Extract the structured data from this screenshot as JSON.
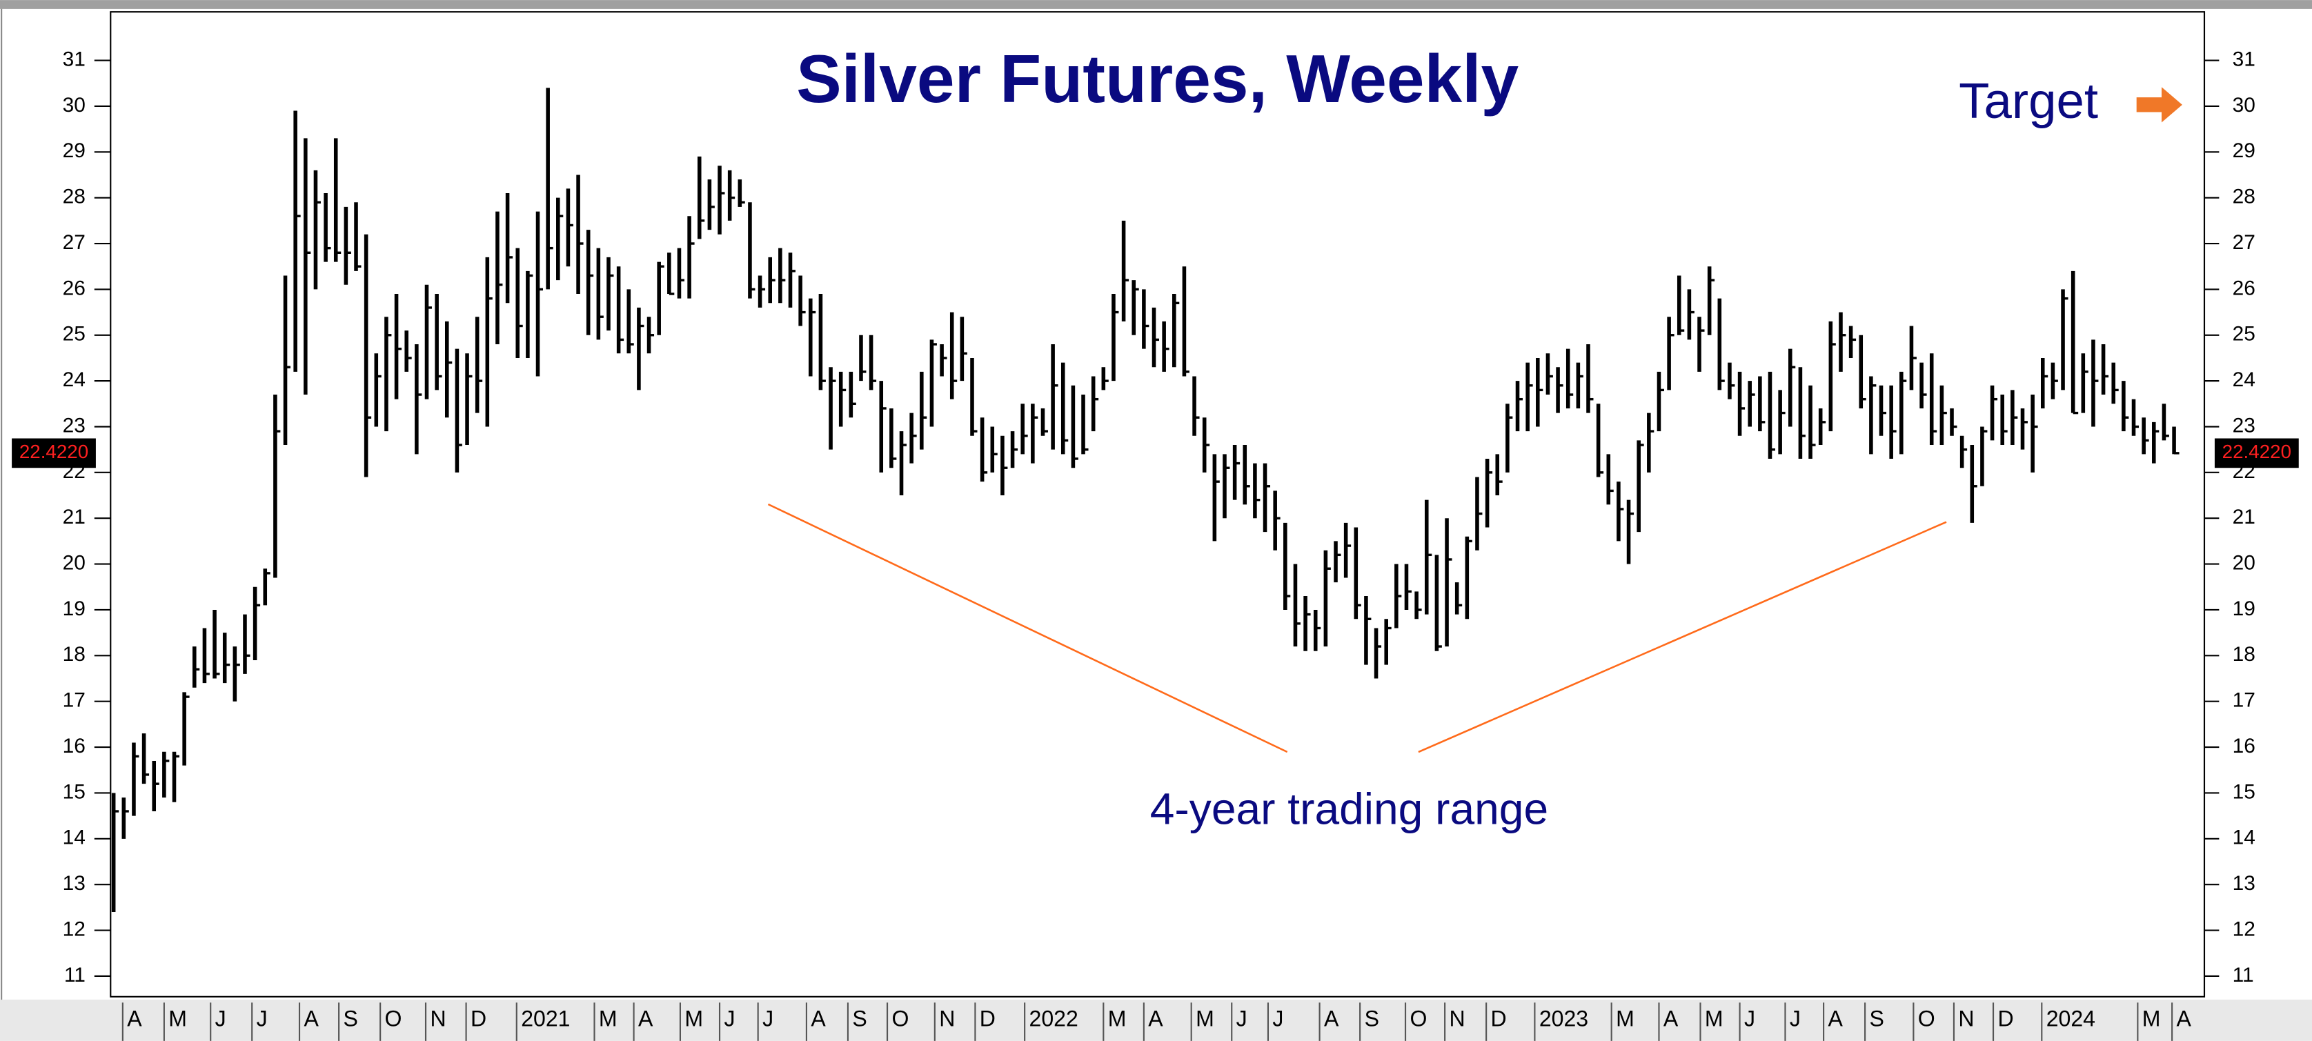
{
  "chart_data": {
    "type": "ohlc",
    "title": "Silver Futures, Weekly",
    "target_label": "Target",
    "annotation": "4-year trading range",
    "last_label": "22.4220",
    "color": "#000000",
    "ylim": [
      10.55,
      32.06
    ],
    "yticks": [
      11,
      12,
      13,
      14,
      15,
      16,
      17,
      18,
      19,
      20,
      21,
      22,
      23,
      24,
      25,
      26,
      27,
      28,
      29,
      30,
      31
    ],
    "xlim": [
      -0.3,
      207
    ],
    "xticks": [
      {
        "value": 0.9,
        "label": "A"
      },
      {
        "value": 5.0,
        "label": "M"
      },
      {
        "value": 9.6,
        "label": "J"
      },
      {
        "value": 13.7,
        "label": "J"
      },
      {
        "value": 18.4,
        "label": "A"
      },
      {
        "value": 22.3,
        "label": "S"
      },
      {
        "value": 26.4,
        "label": "O"
      },
      {
        "value": 30.9,
        "label": "N"
      },
      {
        "value": 34.9,
        "label": "D"
      },
      {
        "value": 39.9,
        "label": "2021"
      },
      {
        "value": 47.6,
        "label": "M"
      },
      {
        "value": 51.5,
        "label": "A"
      },
      {
        "value": 56.1,
        "label": "M"
      },
      {
        "value": 60.0,
        "label": "J"
      },
      {
        "value": 63.8,
        "label": "J"
      },
      {
        "value": 68.6,
        "label": "A"
      },
      {
        "value": 72.7,
        "label": "S"
      },
      {
        "value": 76.6,
        "label": "O"
      },
      {
        "value": 81.3,
        "label": "N"
      },
      {
        "value": 85.3,
        "label": "D"
      },
      {
        "value": 90.2,
        "label": "2022"
      },
      {
        "value": 98.0,
        "label": "M"
      },
      {
        "value": 102.0,
        "label": "A"
      },
      {
        "value": 106.7,
        "label": "M"
      },
      {
        "value": 110.7,
        "label": "J"
      },
      {
        "value": 114.3,
        "label": "J"
      },
      {
        "value": 119.4,
        "label": "A"
      },
      {
        "value": 123.4,
        "label": "S"
      },
      {
        "value": 127.9,
        "label": "O"
      },
      {
        "value": 131.8,
        "label": "N"
      },
      {
        "value": 135.9,
        "label": "D"
      },
      {
        "value": 140.7,
        "label": "2023"
      },
      {
        "value": 148.3,
        "label": "M"
      },
      {
        "value": 153.0,
        "label": "A"
      },
      {
        "value": 157.1,
        "label": "M"
      },
      {
        "value": 161.0,
        "label": "J"
      },
      {
        "value": 165.5,
        "label": "J"
      },
      {
        "value": 169.3,
        "label": "A"
      },
      {
        "value": 173.4,
        "label": "S"
      },
      {
        "value": 178.2,
        "label": "O"
      },
      {
        "value": 182.2,
        "label": "N"
      },
      {
        "value": 186.1,
        "label": "D"
      },
      {
        "value": 190.9,
        "label": "2024"
      },
      {
        "value": 200.4,
        "label": "M"
      },
      {
        "value": 203.8,
        "label": "A"
      }
    ],
    "low": [
      12.4,
      14.0,
      14.5,
      15.2,
      14.6,
      14.9,
      14.8,
      15.6,
      17.3,
      17.4,
      17.5,
      17.4,
      17.0,
      17.6,
      17.9,
      19.1,
      19.7,
      22.6,
      24.2,
      23.7,
      26.0,
      26.6,
      26.6,
      26.1,
      26.4,
      21.9,
      23.0,
      22.9,
      23.6,
      24.2,
      22.4,
      23.6,
      23.8,
      23.2,
      22.0,
      22.6,
      23.3,
      23.0,
      24.8,
      25.7,
      24.5,
      24.5,
      24.1,
      26.0,
      26.2,
      26.5,
      25.9,
      25.0,
      24.9,
      25.1,
      24.6,
      24.6,
      23.8,
      24.6,
      25.0,
      25.9,
      25.8,
      25.8,
      27.1,
      27.3,
      27.2,
      27.5,
      27.8,
      25.8,
      25.6,
      25.7,
      25.7,
      25.6,
      25.2,
      24.1,
      23.8,
      22.5,
      23.0,
      23.2,
      24.0,
      23.8,
      22.0,
      22.1,
      21.5,
      22.2,
      22.5,
      23.0,
      24.1,
      23.6,
      24.0,
      22.8,
      21.8,
      22.0,
      21.5,
      22.1,
      22.4,
      22.2,
      22.8,
      22.5,
      22.4,
      22.1,
      22.4,
      22.9,
      23.8,
      24.0,
      25.3,
      25.0,
      24.7,
      24.3,
      24.2,
      24.3,
      24.1,
      22.8,
      22.0,
      20.5,
      21.0,
      21.4,
      21.3,
      21.0,
      20.7,
      20.3,
      19.0,
      18.2,
      18.1,
      18.1,
      18.2,
      19.6,
      19.7,
      18.8,
      17.8,
      17.5,
      17.8,
      18.6,
      19.0,
      18.8,
      18.9,
      18.1,
      18.2,
      18.9,
      18.8,
      20.3,
      20.8,
      21.5,
      22.0,
      22.9,
      22.9,
      23.0,
      23.7,
      23.3,
      23.4,
      23.4,
      23.3,
      21.9,
      21.3,
      20.5,
      20.0,
      20.7,
      22.0,
      22.9,
      23.8,
      25.0,
      24.9,
      24.2,
      25.0,
      23.8,
      23.6,
      22.8,
      23.0,
      22.9,
      22.3,
      22.4,
      23.0,
      22.3,
      22.3,
      22.6,
      22.9,
      24.2,
      24.5,
      23.4,
      22.4,
      22.8,
      22.3,
      22.4,
      23.8,
      23.4,
      22.6,
      22.6,
      22.8,
      22.1,
      20.9,
      21.7,
      22.7,
      22.6,
      22.6,
      22.5,
      22.0,
      23.4,
      23.6,
      23.8,
      23.3,
      23.3,
      23.0,
      23.7,
      23.5,
      22.9,
      22.8,
      22.4,
      22.2,
      22.7,
      22.4
    ],
    "high": [
      15.0,
      14.9,
      16.1,
      16.3,
      15.7,
      15.9,
      15.9,
      17.2,
      18.2,
      18.6,
      19.0,
      18.5,
      18.2,
      18.9,
      19.5,
      19.9,
      23.7,
      26.3,
      29.9,
      29.3,
      28.6,
      28.1,
      29.3,
      27.8,
      27.9,
      27.2,
      24.6,
      25.4,
      25.9,
      25.1,
      24.8,
      26.1,
      25.9,
      25.3,
      24.7,
      24.6,
      25.4,
      26.7,
      27.7,
      28.1,
      26.9,
      26.4,
      27.7,
      30.4,
      28.0,
      28.2,
      28.5,
      27.3,
      26.9,
      26.7,
      26.5,
      26.0,
      25.6,
      25.4,
      26.6,
      26.8,
      26.9,
      27.6,
      28.9,
      28.4,
      28.7,
      28.6,
      28.4,
      27.9,
      26.3,
      26.7,
      26.9,
      26.8,
      26.3,
      25.8,
      25.9,
      24.3,
      24.2,
      24.2,
      25.0,
      25.0,
      24.0,
      23.4,
      22.9,
      23.3,
      24.2,
      24.9,
      24.8,
      25.5,
      25.4,
      24.5,
      23.2,
      23.0,
      22.8,
      22.9,
      23.5,
      23.5,
      23.4,
      24.8,
      24.4,
      23.9,
      23.7,
      24.1,
      24.3,
      25.9,
      27.5,
      26.2,
      26.0,
      25.6,
      25.3,
      25.9,
      26.5,
      24.1,
      23.2,
      22.4,
      22.4,
      22.6,
      22.6,
      22.2,
      22.2,
      21.6,
      20.9,
      20.0,
      19.3,
      19.0,
      20.3,
      20.5,
      20.9,
      20.8,
      19.3,
      18.6,
      18.8,
      20.0,
      20.0,
      19.4,
      21.4,
      20.2,
      21.0,
      19.6,
      20.6,
      21.9,
      22.3,
      22.4,
      23.5,
      24.0,
      24.4,
      24.5,
      24.6,
      24.3,
      24.7,
      24.4,
      24.8,
      23.5,
      22.4,
      21.8,
      21.4,
      22.7,
      23.3,
      24.2,
      25.4,
      26.3,
      26.0,
      25.4,
      26.5,
      25.8,
      24.4,
      24.2,
      24.0,
      24.1,
      24.2,
      23.8,
      24.7,
      24.3,
      23.9,
      23.4,
      25.3,
      25.5,
      25.2,
      25.0,
      24.1,
      23.9,
      23.9,
      24.2,
      25.2,
      24.4,
      24.6,
      23.9,
      23.4,
      22.8,
      22.6,
      23.0,
      23.9,
      23.7,
      23.8,
      23.4,
      23.7,
      24.5,
      24.4,
      26.0,
      26.4,
      24.6,
      24.9,
      24.8,
      24.4,
      24.0,
      23.6,
      23.2,
      23.1,
      23.5,
      23.0
    ],
    "close": [
      14.6,
      14.6,
      15.8,
      15.4,
      15.2,
      15.7,
      15.8,
      17.1,
      17.7,
      17.6,
      17.6,
      17.8,
      17.8,
      18.0,
      19.1,
      19.8,
      22.9,
      24.3,
      27.6,
      26.8,
      27.9,
      26.9,
      26.8,
      26.8,
      26.5,
      23.2,
      24.1,
      25.0,
      24.7,
      24.5,
      23.7,
      25.6,
      24.1,
      24.4,
      22.6,
      24.1,
      24.0,
      25.8,
      26.1,
      26.7,
      25.2,
      26.3,
      26.0,
      26.9,
      27.6,
      27.4,
      27.0,
      26.3,
      25.4,
      26.3,
      24.9,
      24.8,
      25.2,
      25.0,
      26.5,
      25.9,
      26.2,
      27.0,
      27.5,
      27.8,
      28.1,
      28.0,
      27.9,
      26.0,
      26.0,
      26.2,
      26.2,
      26.4,
      25.5,
      25.5,
      24.0,
      24.0,
      23.8,
      23.5,
      24.2,
      24.0,
      23.4,
      22.3,
      22.6,
      22.8,
      23.2,
      24.8,
      24.5,
      24.0,
      24.6,
      22.9,
      22.0,
      22.4,
      22.1,
      22.5,
      22.8,
      23.2,
      22.9,
      23.9,
      22.7,
      22.3,
      22.5,
      23.6,
      24.0,
      25.5,
      26.2,
      26.0,
      25.2,
      24.9,
      24.7,
      25.7,
      24.2,
      23.2,
      22.6,
      21.8,
      22.1,
      22.2,
      21.7,
      21.4,
      21.7,
      21.0,
      19.3,
      18.7,
      18.9,
      18.6,
      19.9,
      20.2,
      20.4,
      19.1,
      18.8,
      18.2,
      18.6,
      19.3,
      19.4,
      19.0,
      20.2,
      18.2,
      20.1,
      19.1,
      20.5,
      21.1,
      22.0,
      21.8,
      23.2,
      23.6,
      23.9,
      23.8,
      24.1,
      23.9,
      23.7,
      24.1,
      23.6,
      22.0,
      21.6,
      21.2,
      21.1,
      22.6,
      22.9,
      23.8,
      25.0,
      25.1,
      25.5,
      25.1,
      26.2,
      24.0,
      23.9,
      23.4,
      23.7,
      23.1,
      22.5,
      23.3,
      24.3,
      22.8,
      22.6,
      23.1,
      24.8,
      25.0,
      24.9,
      23.6,
      23.9,
      23.3,
      22.9,
      24.0,
      24.5,
      23.7,
      22.9,
      23.3,
      23.0,
      22.5,
      21.7,
      22.9,
      23.6,
      22.9,
      23.2,
      23.1,
      23.0,
      24.1,
      24.0,
      25.8,
      23.3,
      24.2,
      24.0,
      24.1,
      23.8,
      23.2,
      23.0,
      22.7,
      22.9,
      22.8,
      22.422
    ]
  }
}
